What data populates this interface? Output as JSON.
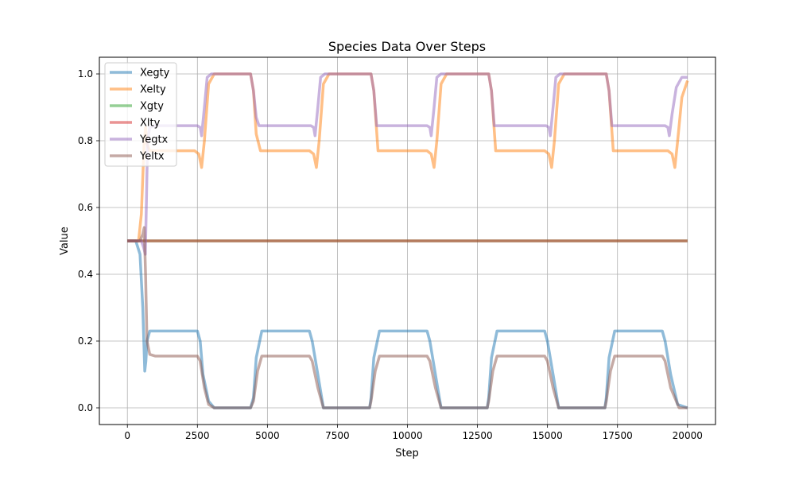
{
  "chart_data": {
    "type": "line",
    "title": "Species Data Over Steps",
    "xlabel": "Step",
    "ylabel": "Value",
    "xlim": [
      -1000,
      21000
    ],
    "ylim": [
      -0.05,
      1.05
    ],
    "xticks": [
      0,
      2500,
      5000,
      7500,
      10000,
      12500,
      15000,
      17500,
      20000
    ],
    "xtick_labels": [
      "0",
      "2500",
      "5000",
      "7500",
      "10000",
      "12500",
      "15000",
      "17500",
      "20000"
    ],
    "yticks": [
      0.0,
      0.2,
      0.4,
      0.6,
      0.8,
      1.0
    ],
    "ytick_labels": [
      "0.0",
      "0.2",
      "0.4",
      "0.6",
      "0.8",
      "1.0"
    ],
    "grid": true,
    "legend_position": "top-left",
    "series": [
      {
        "name": "Xegty",
        "color": "#1f77b4",
        "x": [
          0,
          300,
          450,
          550,
          620,
          660,
          700,
          800,
          1000,
          2500,
          2600,
          2700,
          2900,
          3100,
          4400,
          4500,
          4600,
          4800,
          6500,
          6600,
          6800,
          7000,
          8650,
          8700,
          8800,
          9000,
          10700,
          10800,
          11000,
          11200,
          12850,
          12900,
          13000,
          13200,
          14900,
          15000,
          15200,
          15400,
          17050,
          17100,
          17200,
          17400,
          19100,
          19200,
          19400,
          19650,
          20000
        ],
        "y": [
          0.5,
          0.5,
          0.46,
          0.3,
          0.11,
          0.14,
          0.2,
          0.23,
          0.23,
          0.23,
          0.2,
          0.1,
          0.02,
          0.0,
          0.0,
          0.03,
          0.15,
          0.23,
          0.23,
          0.2,
          0.1,
          0.0,
          0.0,
          0.03,
          0.15,
          0.23,
          0.23,
          0.2,
          0.1,
          0.0,
          0.0,
          0.03,
          0.15,
          0.23,
          0.23,
          0.2,
          0.1,
          0.0,
          0.0,
          0.03,
          0.15,
          0.23,
          0.23,
          0.2,
          0.1,
          0.01,
          0.0
        ]
      },
      {
        "name": "Xelty",
        "color": "#ff7f0e",
        "x": [
          0,
          400,
          500,
          600,
          650,
          700,
          800,
          1000,
          2400,
          2550,
          2650,
          2750,
          2900,
          3100,
          4400,
          4500,
          4600,
          4750,
          6500,
          6650,
          6750,
          6850,
          7000,
          7200,
          8700,
          8800,
          8950,
          10700,
          10850,
          10950,
          11050,
          11200,
          11400,
          12900,
          13000,
          13150,
          14900,
          15050,
          15150,
          15250,
          15400,
          15600,
          17100,
          17200,
          17350,
          19300,
          19450,
          19550,
          19650,
          19800,
          20000
        ],
        "y": [
          0.5,
          0.5,
          0.58,
          0.8,
          0.84,
          0.79,
          0.77,
          0.77,
          0.77,
          0.76,
          0.72,
          0.8,
          0.97,
          1.0,
          1.0,
          0.95,
          0.82,
          0.77,
          0.77,
          0.76,
          0.72,
          0.8,
          0.97,
          1.0,
          1.0,
          0.95,
          0.77,
          0.77,
          0.76,
          0.72,
          0.8,
          0.97,
          1.0,
          1.0,
          0.95,
          0.77,
          0.77,
          0.76,
          0.72,
          0.8,
          0.97,
          1.0,
          1.0,
          0.95,
          0.77,
          0.77,
          0.76,
          0.72,
          0.8,
          0.93,
          0.98
        ]
      },
      {
        "name": "Xgty",
        "color": "#2ca02c",
        "x": [
          0,
          20000
        ],
        "y": [
          0.5,
          0.5
        ]
      },
      {
        "name": "Xlty",
        "color": "#d62728",
        "x": [
          0,
          20000
        ],
        "y": [
          0.5,
          0.5
        ]
      },
      {
        "name": "Yegtx",
        "color": "#9467bd",
        "x": [
          0,
          500,
          580,
          640,
          680,
          720,
          800,
          1000,
          2500,
          2600,
          2650,
          2750,
          2850,
          3000,
          4400,
          4500,
          4600,
          4700,
          6550,
          6650,
          6700,
          6800,
          6900,
          7050,
          8700,
          8800,
          8900,
          10700,
          10800,
          10850,
          10950,
          11050,
          11200,
          12900,
          13000,
          13100,
          14950,
          15050,
          15100,
          15200,
          15300,
          15450,
          17100,
          17200,
          17300,
          19200,
          19300,
          19350,
          19450,
          19600,
          19800,
          20000
        ],
        "y": [
          0.5,
          0.5,
          0.48,
          0.46,
          0.62,
          0.8,
          0.84,
          0.845,
          0.845,
          0.84,
          0.815,
          0.9,
          0.99,
          1.0,
          1.0,
          0.95,
          0.87,
          0.845,
          0.845,
          0.84,
          0.815,
          0.9,
          0.99,
          1.0,
          1.0,
          0.95,
          0.845,
          0.845,
          0.84,
          0.815,
          0.9,
          0.99,
          1.0,
          1.0,
          0.95,
          0.845,
          0.845,
          0.84,
          0.815,
          0.9,
          0.99,
          1.0,
          1.0,
          0.95,
          0.845,
          0.845,
          0.84,
          0.815,
          0.88,
          0.96,
          0.99,
          0.99
        ]
      },
      {
        "name": "Yeltx",
        "color": "#8c564b",
        "x": [
          0,
          450,
          550,
          600,
          650,
          700,
          800,
          1000,
          2500,
          2600,
          2750,
          2900,
          3100,
          4400,
          4500,
          4650,
          4800,
          6500,
          6600,
          6800,
          7000,
          8650,
          8700,
          8850,
          9000,
          10700,
          10800,
          11000,
          11200,
          12850,
          12900,
          13050,
          13200,
          14900,
          15000,
          15200,
          15400,
          17050,
          17100,
          17250,
          17400,
          19100,
          19200,
          19400,
          19700,
          20000
        ],
        "y": [
          0.5,
          0.5,
          0.52,
          0.54,
          0.4,
          0.2,
          0.16,
          0.155,
          0.155,
          0.14,
          0.06,
          0.01,
          0.0,
          0.0,
          0.02,
          0.11,
          0.155,
          0.155,
          0.14,
          0.06,
          0.0,
          0.0,
          0.02,
          0.11,
          0.155,
          0.155,
          0.14,
          0.06,
          0.0,
          0.0,
          0.02,
          0.11,
          0.155,
          0.155,
          0.14,
          0.06,
          0.0,
          0.0,
          0.02,
          0.11,
          0.155,
          0.155,
          0.14,
          0.06,
          0.0,
          0.0
        ]
      }
    ]
  }
}
